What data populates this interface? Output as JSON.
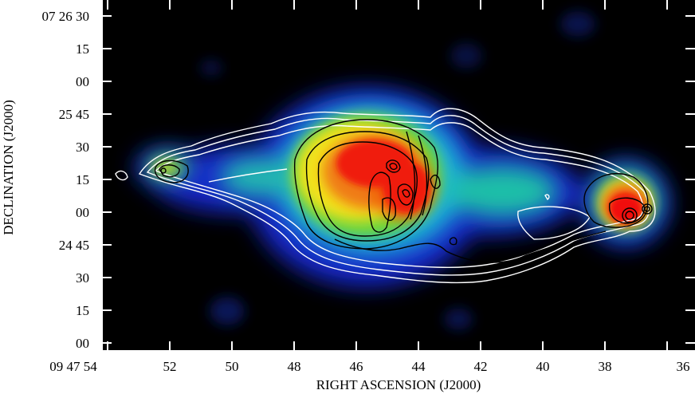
{
  "figure": {
    "x_axis_label": "RIGHT ASCENSION (J2000)",
    "y_axis_label": "DECLINATION (J2000)",
    "x_ticks": [
      "09 47 54",
      "52",
      "50",
      "48",
      "46",
      "44",
      "42",
      "40",
      "38",
      "36"
    ],
    "y_ticks": [
      "07 26 30",
      "15",
      "00",
      "25 45",
      "30",
      "15",
      "00",
      "24 45",
      "30",
      "15",
      "00"
    ]
  },
  "colors": {
    "background": "#000000",
    "frame": "#ffffff",
    "contour_outer": "#ffffff",
    "contour_inner": "#000000"
  }
}
